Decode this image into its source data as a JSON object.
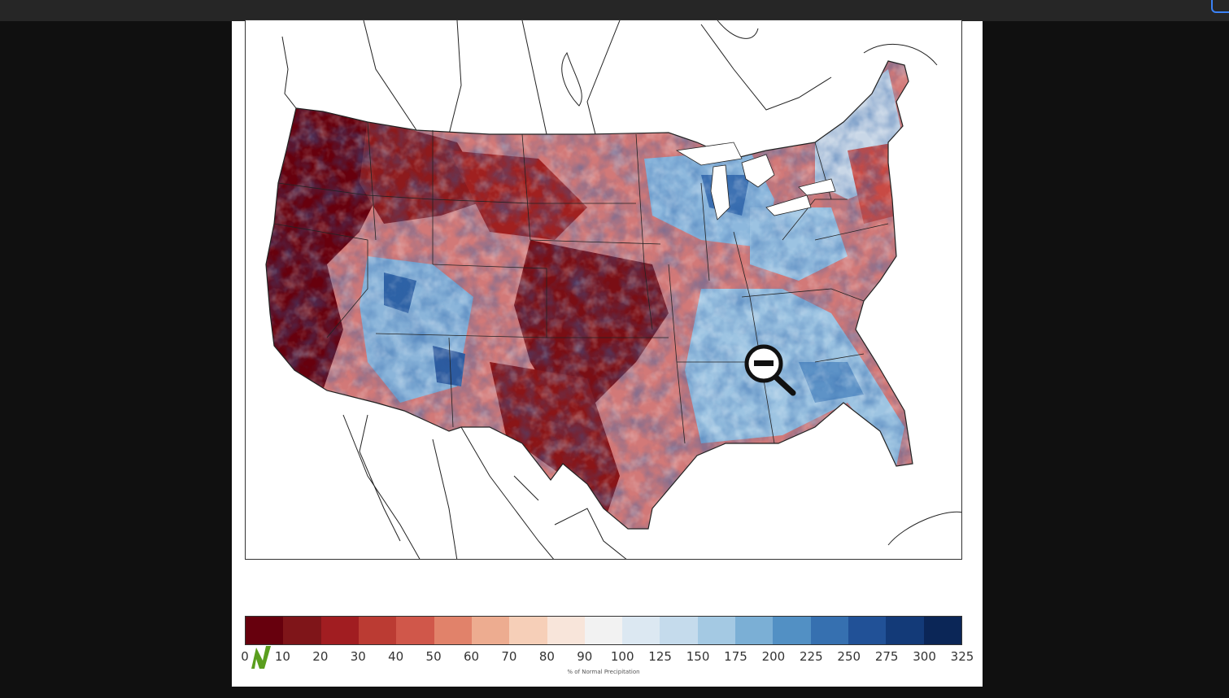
{
  "colorbar": {
    "label": "% of Normal Precipitation",
    "ticks": [
      "0",
      "10",
      "20",
      "30",
      "40",
      "50",
      "60",
      "70",
      "80",
      "90",
      "100",
      "125",
      "150",
      "175",
      "200",
      "225",
      "250",
      "275",
      "300",
      "325"
    ],
    "colors": [
      "#67000d",
      "#7f1519",
      "#a11d21",
      "#bb3b33",
      "#d0574a",
      "#e1826a",
      "#edac90",
      "#f6cfb8",
      "#f8e5da",
      "#f2f2f2",
      "#dce8f2",
      "#c5dbec",
      "#a4c9e3",
      "#7bafd5",
      "#5290c4",
      "#3670b0",
      "#215197",
      "#133a78",
      "#0b2657"
    ]
  },
  "icons": {
    "zoom": "zoom-out-magnifier-icon",
    "logo": "green-n-logo-icon"
  }
}
